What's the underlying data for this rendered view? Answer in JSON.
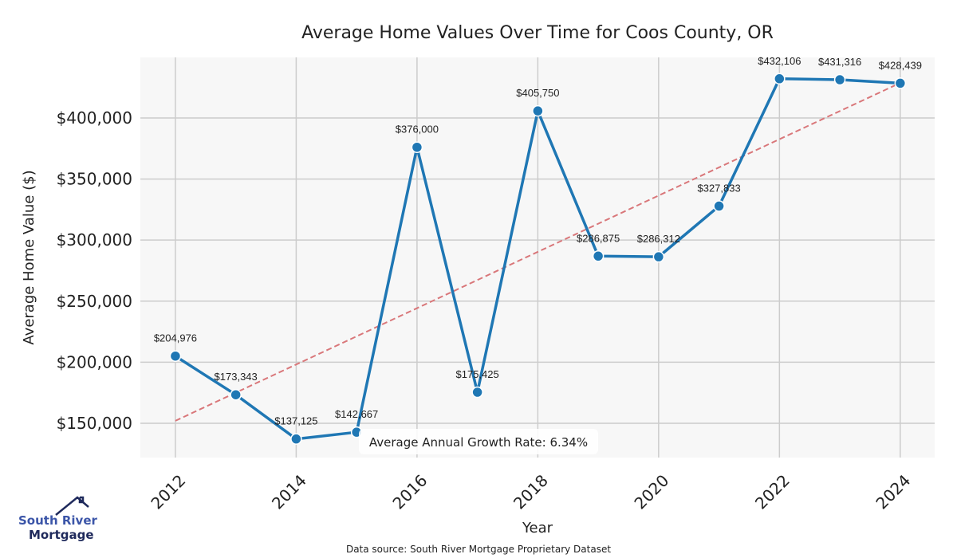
{
  "chart_data": {
    "type": "line",
    "title": "Average Home Values Over Time for Coos County, OR",
    "xlabel": "Year",
    "ylabel": "Average Home Value ($)",
    "x": [
      2012,
      2013,
      2014,
      2015,
      2016,
      2017,
      2018,
      2019,
      2020,
      2021,
      2022,
      2023,
      2024
    ],
    "series": [
      {
        "name": "Average Home Value",
        "values": [
          204976,
          173343,
          137125,
          142667,
          376000,
          175425,
          405750,
          286875,
          286312,
          327833,
          432106,
          431316,
          428439
        ],
        "color": "#1f77b4"
      }
    ],
    "data_labels": [
      "$204,976",
      "$173,343",
      "$137,125",
      "$142,667",
      "$376,000",
      "$175,425",
      "$405,750",
      "$286,875",
      "$286,312",
      "$327,833",
      "$432,106",
      "$431,316",
      "$428,439"
    ],
    "trend": {
      "name": "Trend line",
      "start": [
        2012,
        152000
      ],
      "end": [
        2024,
        428700
      ],
      "color": "#d9777a",
      "style": "dashed"
    },
    "xticks": [
      2012,
      2014,
      2016,
      2018,
      2020,
      2022,
      2024
    ],
    "xtick_labels": [
      "2012",
      "2014",
      "2016",
      "2018",
      "2020",
      "2022",
      "2024"
    ],
    "yticks": [
      150000,
      200000,
      250000,
      300000,
      350000,
      400000
    ],
    "ytick_labels": [
      "$150,000",
      "$200,000",
      "$250,000",
      "$300,000",
      "$350,000",
      "$400,000"
    ],
    "xlim": [
      2011.42,
      2024.57
    ],
    "ylim": [
      121900,
      449600
    ],
    "grid": true,
    "annotation": "Average Annual Growth Rate: 6.34%",
    "source": "Data source: South River Mortgage Proprietary Dataset"
  },
  "logo": {
    "line1": "South River",
    "line2": "Mortgage"
  }
}
